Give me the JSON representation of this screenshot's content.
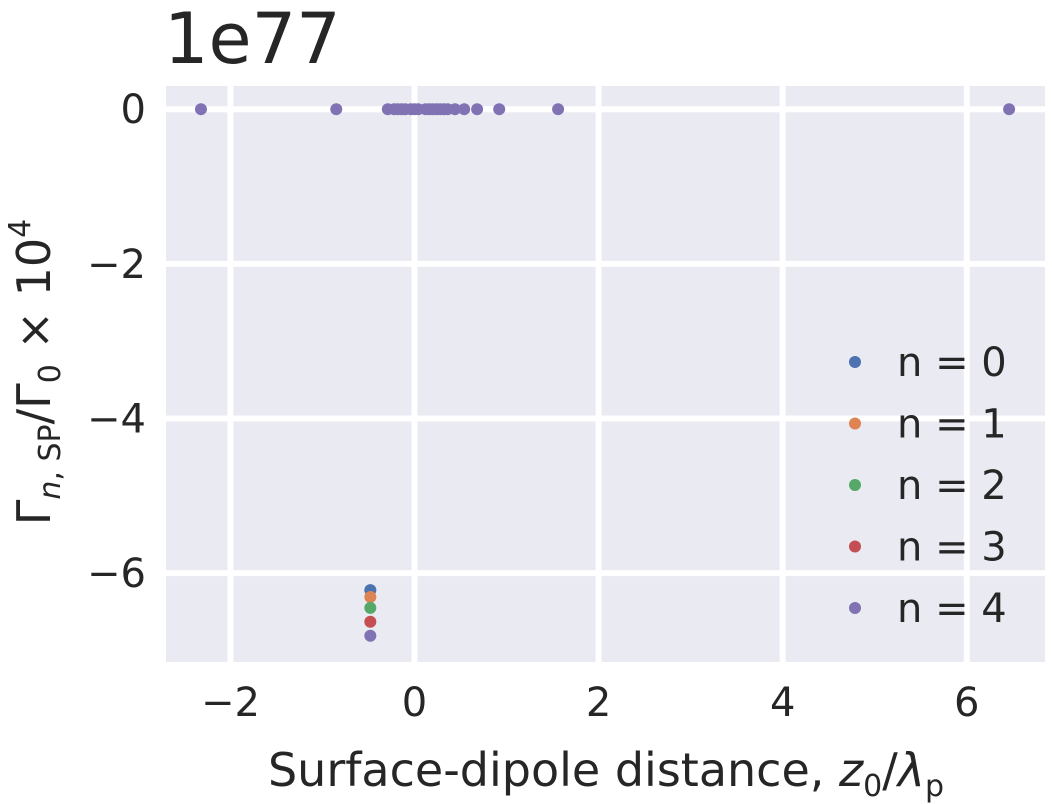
{
  "chart_data": {
    "type": "scatter",
    "offset_text": "1e77",
    "xlabel": {
      "prefix": "Surface-dipole distance, ",
      "z": "z",
      "z_sub": "0",
      "slash": "/",
      "lambda": "λ",
      "lambda_sub": "p"
    },
    "ylabel": {
      "gamma": "Γ",
      "n": "n",
      "comma_sp": ", SP",
      "slash": "/Γ",
      "zero": "0",
      "times": " × 10",
      "exp": "4"
    },
    "xlim": [
      -2.7,
      6.85
    ],
    "ylim": [
      -7.15,
      0.3
    ],
    "xticks": [
      -2,
      0,
      2,
      4,
      6
    ],
    "xtick_labels": [
      "−2",
      "0",
      "2",
      "4",
      "6"
    ],
    "yticks": [
      0,
      -2,
      -4,
      -6
    ],
    "ytick_labels": [
      "0",
      "−2",
      "−4",
      "−6"
    ],
    "grid": true,
    "legend_position": "lower-right",
    "series": [
      {
        "name": "n = 0",
        "color": "#4c72b0",
        "x": [
          -0.48
        ],
        "y": [
          -6.22
        ]
      },
      {
        "name": "n = 1",
        "color": "#dd8452",
        "x": [
          -0.48
        ],
        "y": [
          -6.31
        ]
      },
      {
        "name": "n = 2",
        "color": "#55a868",
        "x": [
          -0.48
        ],
        "y": [
          -6.45
        ]
      },
      {
        "name": "n = 3",
        "color": "#c44e52",
        "x": [
          -0.48
        ],
        "y": [
          -6.63
        ]
      },
      {
        "name": "n = 4",
        "color": "#8172b3",
        "x": [
          -2.32,
          -0.85,
          -0.29,
          -0.22,
          -0.18,
          -0.14,
          -0.1,
          -0.04,
          0.0,
          0.04,
          0.12,
          0.16,
          0.2,
          0.24,
          0.28,
          0.32,
          0.36,
          0.44,
          0.54,
          0.68,
          0.92,
          1.56,
          6.46,
          -0.48
        ],
        "y": [
          0,
          0,
          0,
          0,
          0,
          0,
          0,
          0,
          0,
          0,
          0,
          0,
          0,
          0,
          0,
          0,
          0,
          0,
          0,
          0,
          0,
          0,
          0,
          -6.81
        ]
      }
    ]
  }
}
